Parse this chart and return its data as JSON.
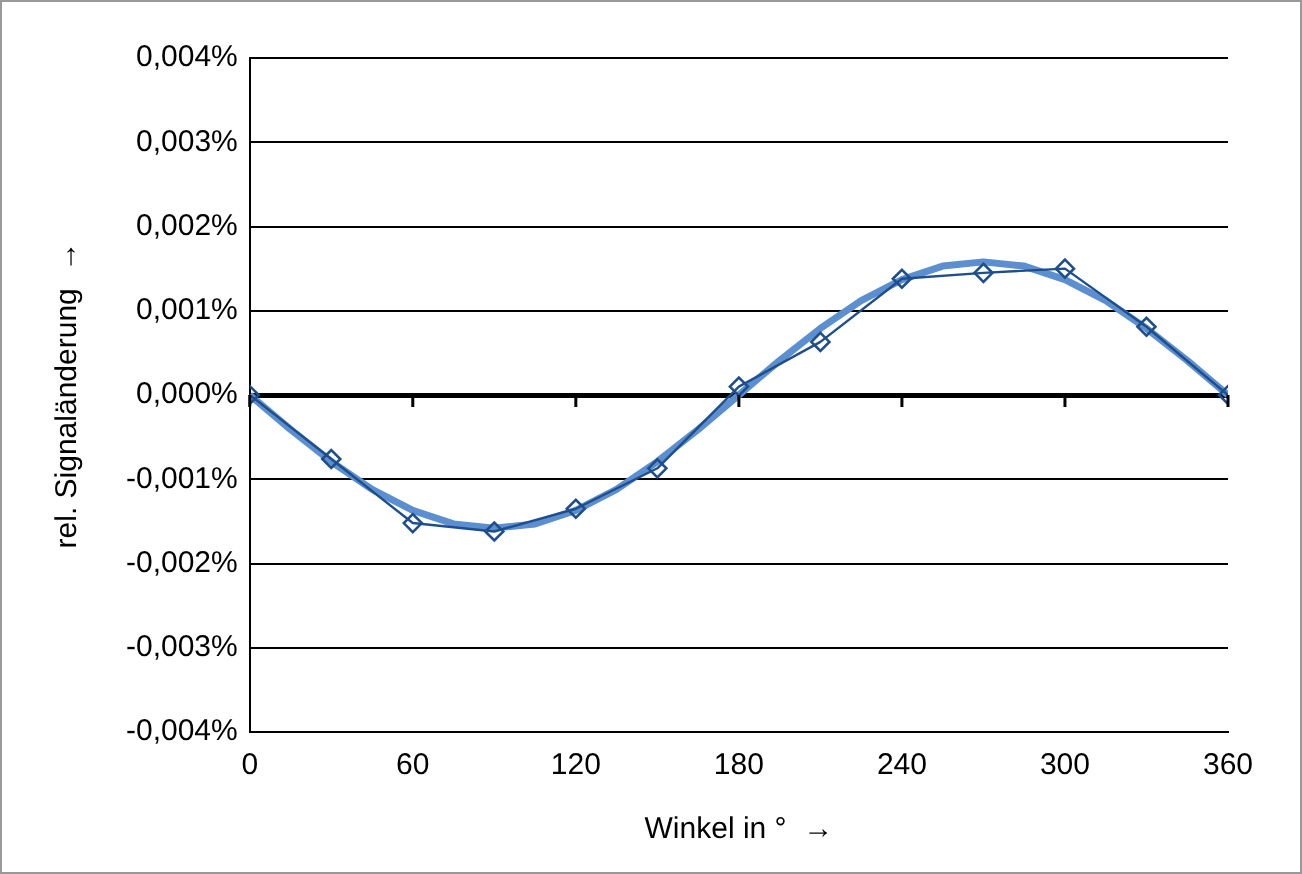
{
  "chart_data": {
    "type": "line",
    "xlabel": "Winkel in °  →",
    "ylabel": "rel. Signaländerung  →",
    "xlim": [
      0,
      360
    ],
    "xticks": [
      0,
      60,
      120,
      180,
      240,
      300,
      360
    ],
    "ylim": [
      -0.004,
      0.004
    ],
    "yticks": [
      {
        "value": -0.004,
        "label": "-0,004%"
      },
      {
        "value": -0.003,
        "label": "-0,003%"
      },
      {
        "value": -0.002,
        "label": "-0,002%"
      },
      {
        "value": -0.001,
        "label": "-0,001%"
      },
      {
        "value": 0,
        "label": "0,000%"
      },
      {
        "value": 0.001,
        "label": "0,001%"
      },
      {
        "value": 0.002,
        "label": "0,002%"
      },
      {
        "value": 0.003,
        "label": "0,003%"
      },
      {
        "value": 0.004,
        "label": "0,004%"
      }
    ],
    "grid": "y",
    "legend": false,
    "series": [
      {
        "color": "#1f4e8c",
        "marker": "diamond",
        "x": [
          0,
          30,
          60,
          90,
          120,
          150,
          180,
          210,
          240,
          270,
          300,
          330,
          360
        ],
        "values": [
          0,
          -0.00076,
          -0.00152,
          -0.00162,
          -0.00135,
          -0.00087,
          0.0001,
          0.00063,
          0.00138,
          0.00145,
          0.0015,
          0.00081,
          0
        ]
      },
      {
        "color": "#5b8fd0",
        "marker": "none",
        "x": [
          0,
          15,
          30,
          45,
          60,
          75,
          90,
          105,
          120,
          135,
          150,
          165,
          180,
          195,
          210,
          225,
          240,
          255,
          270,
          285,
          300,
          315,
          330,
          345,
          360
        ],
        "values": [
          0,
          -0.00041,
          -0.00079,
          -0.00112,
          -0.00137,
          -0.00153,
          -0.00158,
          -0.00153,
          -0.00137,
          -0.00112,
          -0.00079,
          -0.00041,
          0,
          0.00041,
          0.00079,
          0.00112,
          0.00137,
          0.00153,
          0.00158,
          0.00153,
          0.00137,
          0.00112,
          0.00079,
          0.00041,
          0
        ]
      }
    ]
  }
}
